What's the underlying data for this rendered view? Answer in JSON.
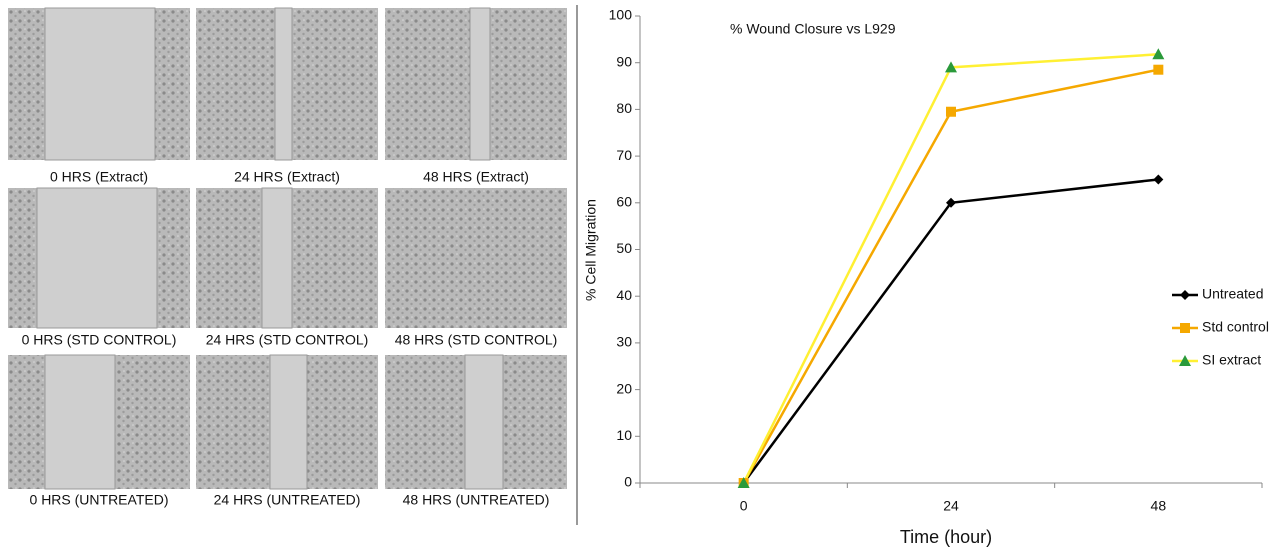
{
  "panels": [
    {
      "caption": "0 HRS (Extract)"
    },
    {
      "caption": "24 HRS (Extract)"
    },
    {
      "caption": "48 HRS (Extract)"
    },
    {
      "caption": "0 HRS (STD CONTROL)"
    },
    {
      "caption": "24 HRS (STD CONTROL)"
    },
    {
      "caption": "48 HRS (STD CONTROL)"
    },
    {
      "caption": "0 HRS (UNTREATED)"
    },
    {
      "caption": "24 HRS (UNTREATED)"
    },
    {
      "caption": "48 HRS (UNTREATED)"
    }
  ],
  "chart_data": {
    "type": "line",
    "title": "% Wound Closure vs L929",
    "x_label": "Time (hour)",
    "y_label": "% Cell Migration",
    "categories": [
      "0",
      "24",
      "48"
    ],
    "series": [
      {
        "name": "Untreated",
        "color": "#000000",
        "marker": "diamond",
        "marker_color": "#000000",
        "values": [
          0,
          60,
          65
        ]
      },
      {
        "name": "Std control",
        "color": "#f5a800",
        "marker": "square",
        "marker_color": "#f5a800",
        "values": [
          0,
          79.5,
          88.5
        ]
      },
      {
        "name": "SI extract",
        "color": "#fff033",
        "marker": "triangle",
        "marker_color": "#2a9a3a",
        "values": [
          0,
          89,
          91.8
        ]
      }
    ],
    "ylim": [
      0,
      100
    ],
    "yticks": [
      0,
      10,
      20,
      30,
      40,
      50,
      60,
      70,
      80,
      90,
      100
    ],
    "grid": false,
    "legend": "right"
  }
}
